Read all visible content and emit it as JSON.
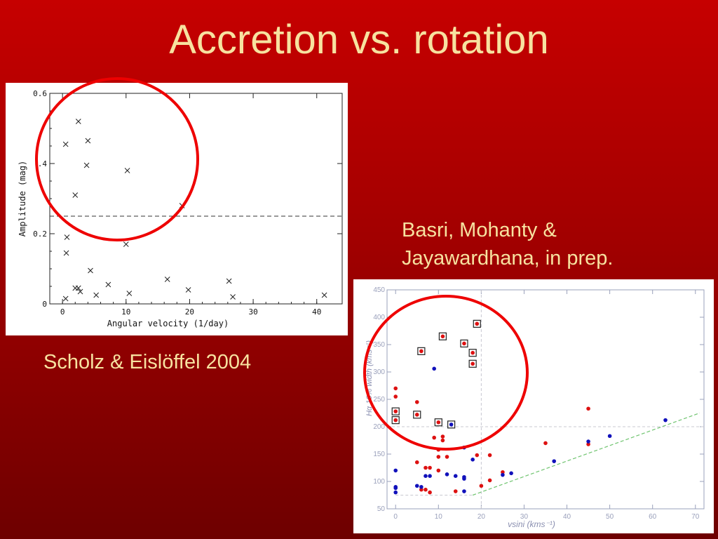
{
  "slide": {
    "title": "Accretion vs. rotation",
    "caption_left": "Scholz & Eislöffel 2004",
    "caption_right_line1": "Basri, Mohanty &",
    "caption_right_line2": "Jayawardhana, in prep.",
    "highlight_color": "#ee0000",
    "text_color": "#f7e2a0"
  },
  "chart_data": [
    {
      "type": "scatter",
      "title": "",
      "xlabel": "Angular velocity (1/day)",
      "ylabel": "Amplitude (mag)",
      "xlim": [
        -2,
        44
      ],
      "ylim": [
        0,
        0.6
      ],
      "xticks": [
        0,
        10,
        20,
        30,
        40
      ],
      "yticks": [
        0,
        0.2,
        0.4,
        0.6
      ],
      "ytick_labels": [
        "0",
        "0.2",
        ".4",
        "0.6"
      ],
      "marker": "x",
      "threshold_y": 0.25,
      "points": [
        {
          "x": 0.5,
          "y": 0.455
        },
        {
          "x": 0.7,
          "y": 0.19
        },
        {
          "x": 0.6,
          "y": 0.145
        },
        {
          "x": 0.5,
          "y": 0.015
        },
        {
          "x": 2.0,
          "y": 0.31
        },
        {
          "x": 2.5,
          "y": 0.52
        },
        {
          "x": 4.0,
          "y": 0.465
        },
        {
          "x": 3.8,
          "y": 0.395
        },
        {
          "x": 10.2,
          "y": 0.38
        },
        {
          "x": 18.8,
          "y": 0.28
        },
        {
          "x": 10.0,
          "y": 0.17
        },
        {
          "x": 4.4,
          "y": 0.095
        },
        {
          "x": 2.0,
          "y": 0.045
        },
        {
          "x": 2.5,
          "y": 0.045
        },
        {
          "x": 2.8,
          "y": 0.035
        },
        {
          "x": 5.3,
          "y": 0.025
        },
        {
          "x": 7.2,
          "y": 0.055
        },
        {
          "x": 10.5,
          "y": 0.03
        },
        {
          "x": 16.5,
          "y": 0.07
        },
        {
          "x": 19.8,
          "y": 0.04
        },
        {
          "x": 26.2,
          "y": 0.065
        },
        {
          "x": 26.8,
          "y": 0.02
        },
        {
          "x": 41.2,
          "y": 0.025
        }
      ]
    },
    {
      "type": "scatter",
      "title": "",
      "xlabel": "vsini (kms⁻¹)",
      "ylabel": "Hα 10% width (kms⁻¹)",
      "xlim": [
        -2,
        72
      ],
      "ylim": [
        50,
        450
      ],
      "xticks": [
        0,
        10,
        20,
        30,
        40,
        50,
        60,
        70
      ],
      "yticks": [
        50,
        100,
        150,
        200,
        250,
        300,
        350,
        400,
        450
      ],
      "reference_lines": {
        "x": 20,
        "y": 200
      },
      "trend_line": [
        {
          "x": 18,
          "y": 75
        },
        {
          "x": 71,
          "y": 225
        }
      ],
      "floor_line": [
        {
          "x": 0,
          "y": 75
        },
        {
          "x": 18,
          "y": 75
        }
      ],
      "series": [
        {
          "color": "#dd1111",
          "points": [
            {
              "x": 0,
              "y": 270
            },
            {
              "x": 0,
              "y": 255
            },
            {
              "x": 0,
              "y": 228
            },
            {
              "x": 0,
              "y": 212
            },
            {
              "x": 5,
              "y": 245
            },
            {
              "x": 5,
              "y": 222
            },
            {
              "x": 5,
              "y": 135
            },
            {
              "x": 6,
              "y": 338
            },
            {
              "x": 6,
              "y": 85
            },
            {
              "x": 7,
              "y": 125
            },
            {
              "x": 7,
              "y": 85
            },
            {
              "x": 8,
              "y": 125
            },
            {
              "x": 8,
              "y": 80
            },
            {
              "x": 9,
              "y": 180
            },
            {
              "x": 10,
              "y": 208
            },
            {
              "x": 10,
              "y": 158
            },
            {
              "x": 10,
              "y": 145
            },
            {
              "x": 11,
              "y": 365
            },
            {
              "x": 11,
              "y": 182
            },
            {
              "x": 11,
              "y": 175
            },
            {
              "x": 10,
              "y": 120
            },
            {
              "x": 12,
              "y": 145
            },
            {
              "x": 14,
              "y": 82
            },
            {
              "x": 16,
              "y": 352
            },
            {
              "x": 18,
              "y": 335
            },
            {
              "x": 18,
              "y": 315
            },
            {
              "x": 19,
              "y": 388
            },
            {
              "x": 19,
              "y": 148
            },
            {
              "x": 20,
              "y": 92
            },
            {
              "x": 22,
              "y": 148
            },
            {
              "x": 22,
              "y": 102
            },
            {
              "x": 25,
              "y": 117
            },
            {
              "x": 35,
              "y": 170
            },
            {
              "x": 45,
              "y": 233
            },
            {
              "x": 45,
              "y": 168
            }
          ]
        },
        {
          "color": "#1111bb",
          "points": [
            {
              "x": 0,
              "y": 120
            },
            {
              "x": 0,
              "y": 90
            },
            {
              "x": 0,
              "y": 88
            },
            {
              "x": 0,
              "y": 80
            },
            {
              "x": 5,
              "y": 92
            },
            {
              "x": 6,
              "y": 90
            },
            {
              "x": 7,
              "y": 110
            },
            {
              "x": 8,
              "y": 110
            },
            {
              "x": 9,
              "y": 306
            },
            {
              "x": 12,
              "y": 113
            },
            {
              "x": 13,
              "y": 204
            },
            {
              "x": 14,
              "y": 110
            },
            {
              "x": 16,
              "y": 162
            },
            {
              "x": 16,
              "y": 108
            },
            {
              "x": 16,
              "y": 105
            },
            {
              "x": 16,
              "y": 82
            },
            {
              "x": 18,
              "y": 140
            },
            {
              "x": 25,
              "y": 112
            },
            {
              "x": 27,
              "y": 115
            },
            {
              "x": 37,
              "y": 137
            },
            {
              "x": 45,
              "y": 173
            },
            {
              "x": 50,
              "y": 183
            },
            {
              "x": 63,
              "y": 212
            }
          ]
        }
      ],
      "boxed_points": [
        {
          "x": 0,
          "y": 228
        },
        {
          "x": 0,
          "y": 212
        },
        {
          "x": 5,
          "y": 222
        },
        {
          "x": 6,
          "y": 338
        },
        {
          "x": 10,
          "y": 208
        },
        {
          "x": 11,
          "y": 365
        },
        {
          "x": 13,
          "y": 204
        },
        {
          "x": 16,
          "y": 352
        },
        {
          "x": 18,
          "y": 335
        },
        {
          "x": 18,
          "y": 315
        },
        {
          "x": 19,
          "y": 388
        }
      ]
    }
  ]
}
